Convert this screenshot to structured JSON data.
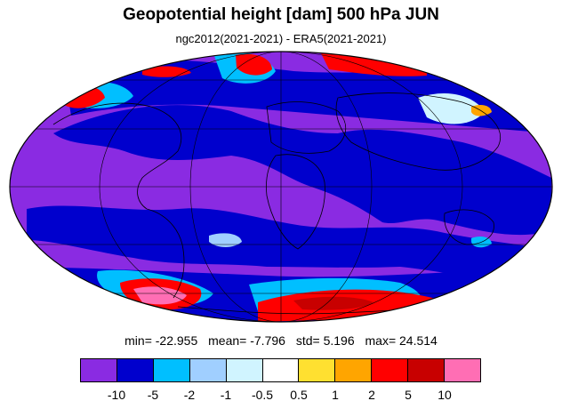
{
  "header": {
    "title": "Geopotential height [dam] 500 hPa JUN",
    "subtitle": "ngc2012(2021-2021) - ERA5(2021-2021)"
  },
  "stats": {
    "min": "min= -22.955",
    "mean": "mean= -7.796",
    "std": "std= 5.196",
    "max": "max= 24.514"
  },
  "colorbar": {
    "colors": [
      "#8a2be2",
      "#0000cd",
      "#00bfff",
      "#a0cfff",
      "#d0f4ff",
      "#ffffff",
      "#ffe030",
      "#ffa500",
      "#ff0000",
      "#c80000",
      "#ff6eb4"
    ],
    "labels": [
      "-10",
      "-5",
      "-2",
      "-1",
      "-0.5",
      "0.5",
      "1",
      "2",
      "5",
      "10"
    ]
  },
  "map": {
    "projection": "mollweide",
    "background_color": "#8a2be2",
    "coastline_color": "#000000"
  }
}
